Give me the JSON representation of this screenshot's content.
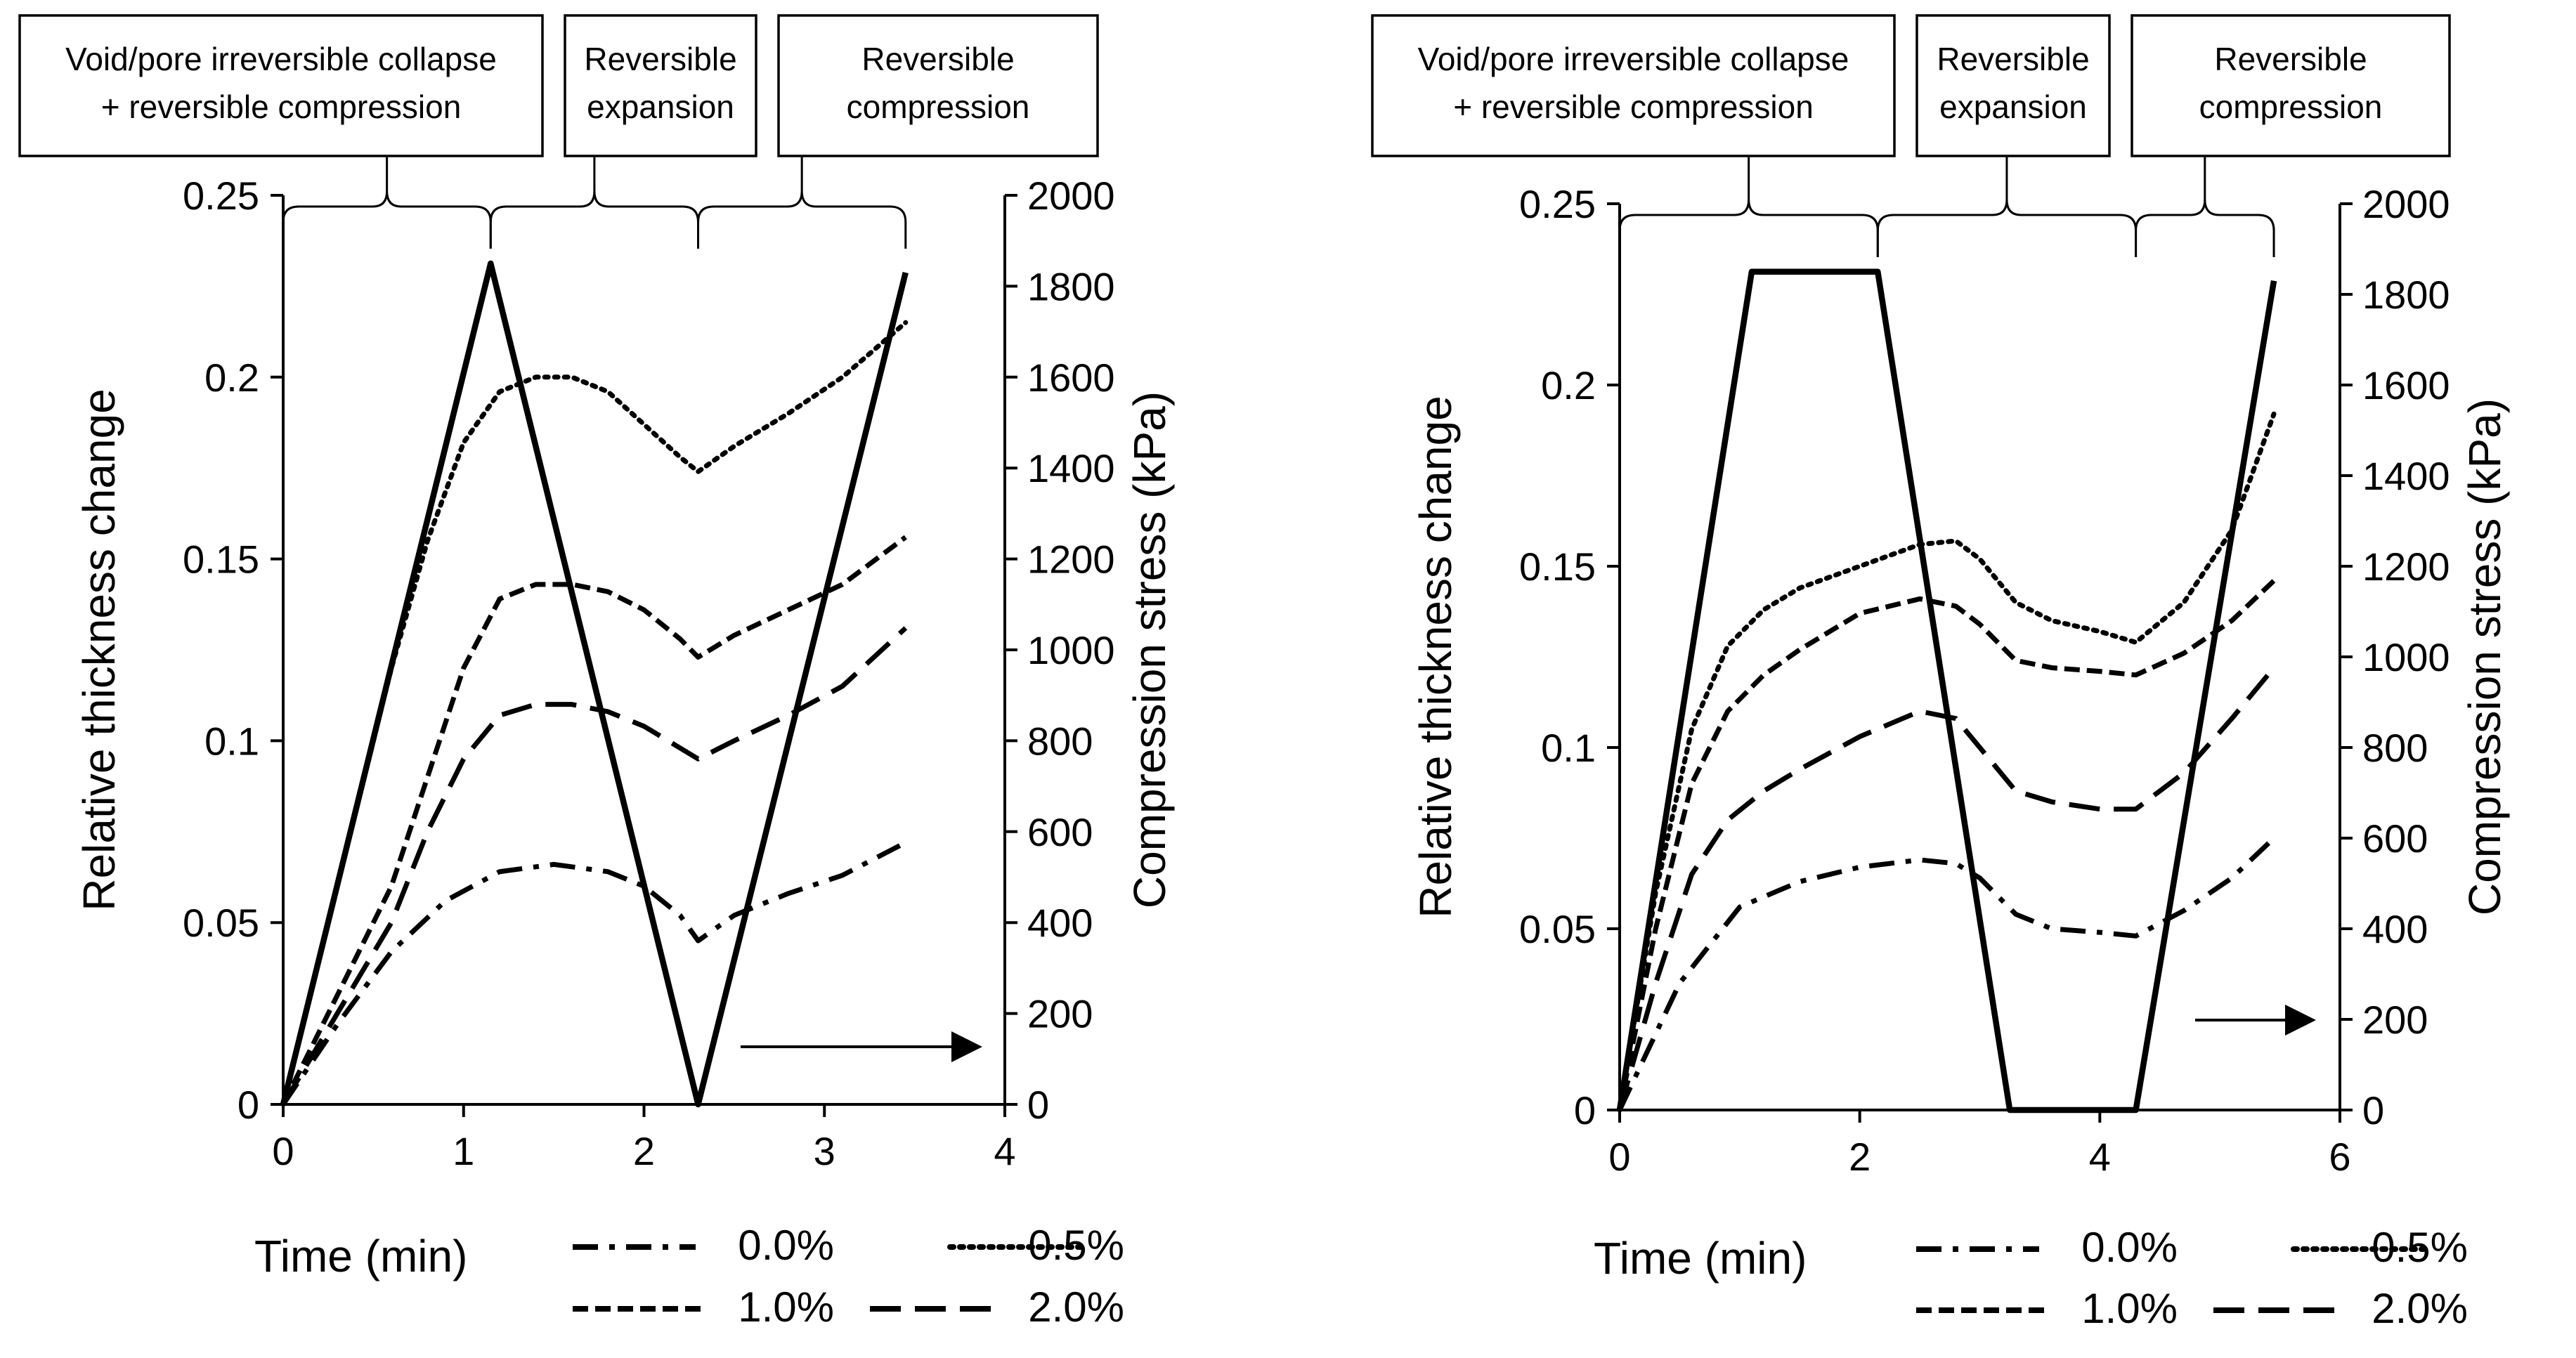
{
  "chart_data": [
    {
      "type": "line",
      "xlabel": "Time (min)",
      "ylabel": "Relative thickness change",
      "y2label": "Compression stress (kPa)",
      "xlim": [
        0,
        4
      ],
      "ylim": [
        0,
        0.25
      ],
      "y2lim": [
        0,
        2000
      ],
      "xticks": [
        "0",
        "1",
        "2",
        "3",
        "4"
      ],
      "yticks": [
        "0",
        "0.05",
        "0.1",
        "0.15",
        "0.2",
        "0.25"
      ],
      "y2ticks": [
        "0",
        "200",
        "400",
        "600",
        "800",
        "1000",
        "1200",
        "1400",
        "1600",
        "1800",
        "2000"
      ],
      "phases": [
        {
          "label_lines": [
            "Void/pore irreversible collapse",
            "+ reversible compression"
          ],
          "start": 0,
          "end": 1.15
        },
        {
          "label_lines": [
            "Reversible",
            "expansion"
          ],
          "start": 1.15,
          "end": 2.3
        },
        {
          "label_lines": [
            "Reversible",
            "compression"
          ],
          "start": 2.3,
          "end": 3.45
        }
      ],
      "series": [
        {
          "name": "0.0%",
          "style": "dashdot",
          "axis": "left",
          "x": [
            0,
            0.3,
            0.6,
            0.9,
            1.2,
            1.5,
            1.8,
            2.0,
            2.2,
            2.3,
            2.5,
            2.8,
            3.1,
            3.45
          ],
          "y": [
            0,
            0.022,
            0.042,
            0.056,
            0.064,
            0.066,
            0.064,
            0.06,
            0.052,
            0.045,
            0.052,
            0.058,
            0.063,
            0.072
          ]
        },
        {
          "name": "0.5%",
          "style": "dotted",
          "axis": "left",
          "x": [
            0,
            0.2,
            0.4,
            0.6,
            0.8,
            1.0,
            1.2,
            1.4,
            1.6,
            1.8,
            2.0,
            2.2,
            2.3,
            2.5,
            2.8,
            3.1,
            3.45
          ],
          "y": [
            0,
            0.04,
            0.08,
            0.12,
            0.155,
            0.182,
            0.196,
            0.2,
            0.2,
            0.196,
            0.187,
            0.178,
            0.174,
            0.181,
            0.19,
            0.2,
            0.215
          ]
        },
        {
          "name": "1.0%",
          "style": "short-dash",
          "axis": "left",
          "x": [
            0,
            0.3,
            0.6,
            0.8,
            1.0,
            1.2,
            1.4,
            1.6,
            1.8,
            2.0,
            2.2,
            2.3,
            2.5,
            2.8,
            3.1,
            3.45
          ],
          "y": [
            0,
            0.03,
            0.06,
            0.09,
            0.12,
            0.139,
            0.143,
            0.143,
            0.141,
            0.136,
            0.128,
            0.123,
            0.129,
            0.136,
            0.143,
            0.156
          ]
        },
        {
          "name": "2.0%",
          "style": "long-dash",
          "axis": "left",
          "x": [
            0,
            0.3,
            0.6,
            0.8,
            1.0,
            1.2,
            1.4,
            1.6,
            1.8,
            2.0,
            2.2,
            2.3,
            2.5,
            2.8,
            3.1,
            3.45
          ],
          "y": [
            0,
            0.025,
            0.05,
            0.075,
            0.095,
            0.107,
            0.11,
            0.11,
            0.108,
            0.104,
            0.098,
            0.095,
            0.1,
            0.107,
            0.115,
            0.131
          ]
        },
        {
          "name": "Compression stress",
          "style": "solid",
          "axis": "right",
          "x": [
            0,
            1.15,
            2.3,
            3.45
          ],
          "y": [
            0,
            1850,
            0,
            1830
          ]
        }
      ]
    },
    {
      "type": "line",
      "xlabel": "Time (min)",
      "ylabel": "Relative thickness change",
      "y2label": "Compression stress (kPa)",
      "xlim": [
        0,
        6
      ],
      "ylim": [
        0,
        0.25
      ],
      "y2lim": [
        0,
        2000
      ],
      "xticks": [
        "0",
        "2",
        "4",
        "6"
      ],
      "yticks": [
        "0",
        "0.05",
        "0.1",
        "0.15",
        "0.2",
        "0.25"
      ],
      "y2ticks": [
        "0",
        "200",
        "400",
        "600",
        "800",
        "1000",
        "1200",
        "1400",
        "1600",
        "1800",
        "2000"
      ],
      "phases": [
        {
          "label_lines": [
            "Void/pore irreversible collapse",
            "+ reversible compression"
          ],
          "start": 0,
          "end": 2.15
        },
        {
          "label_lines": [
            "Reversible",
            "expansion"
          ],
          "start": 2.15,
          "end": 4.3
        },
        {
          "label_lines": [
            "Reversible",
            "compression"
          ],
          "start": 4.3,
          "end": 5.45
        }
      ],
      "series": [
        {
          "name": "0.0%",
          "style": "dashdot",
          "axis": "left",
          "x": [
            0,
            0.5,
            1.0,
            1.5,
            2.0,
            2.5,
            2.8,
            3.0,
            3.3,
            3.6,
            4.0,
            4.3,
            4.7,
            5.1,
            5.45
          ],
          "y": [
            0,
            0.035,
            0.056,
            0.063,
            0.067,
            0.069,
            0.068,
            0.064,
            0.054,
            0.05,
            0.049,
            0.048,
            0.055,
            0.064,
            0.075
          ]
        },
        {
          "name": "0.5%",
          "style": "dotted",
          "axis": "left",
          "x": [
            0,
            0.3,
            0.6,
            0.9,
            1.2,
            1.5,
            2.0,
            2.5,
            2.8,
            3.0,
            3.3,
            3.6,
            4.0,
            4.3,
            4.7,
            5.1,
            5.45
          ],
          "y": [
            0,
            0.06,
            0.105,
            0.128,
            0.138,
            0.144,
            0.15,
            0.156,
            0.157,
            0.152,
            0.14,
            0.135,
            0.132,
            0.129,
            0.14,
            0.16,
            0.192
          ]
        },
        {
          "name": "1.0%",
          "style": "short-dash",
          "axis": "left",
          "x": [
            0,
            0.3,
            0.6,
            0.9,
            1.2,
            1.5,
            2.0,
            2.5,
            2.8,
            3.0,
            3.3,
            3.6,
            4.0,
            4.3,
            4.7,
            5.1,
            5.45
          ],
          "y": [
            0,
            0.05,
            0.09,
            0.11,
            0.12,
            0.127,
            0.137,
            0.141,
            0.139,
            0.134,
            0.124,
            0.122,
            0.121,
            0.12,
            0.126,
            0.135,
            0.146
          ]
        },
        {
          "name": "2.0%",
          "style": "long-dash",
          "axis": "left",
          "x": [
            0,
            0.3,
            0.6,
            0.9,
            1.2,
            1.5,
            2.0,
            2.5,
            2.8,
            3.0,
            3.3,
            3.6,
            4.0,
            4.3,
            4.7,
            5.1,
            5.45
          ],
          "y": [
            0,
            0.035,
            0.065,
            0.08,
            0.088,
            0.094,
            0.103,
            0.11,
            0.108,
            0.1,
            0.088,
            0.085,
            0.083,
            0.083,
            0.093,
            0.108,
            0.122
          ]
        },
        {
          "name": "Compression stress",
          "style": "solid",
          "axis": "right",
          "x": [
            0,
            1.1,
            2.15,
            3.25,
            4.3,
            5.45
          ],
          "y": [
            0,
            1850,
            1850,
            0,
            0,
            1830
          ]
        }
      ]
    }
  ],
  "legend": {
    "entries": [
      {
        "label": "0.0%",
        "style": "dashdot"
      },
      {
        "label": "0.5%",
        "style": "dotted"
      },
      {
        "label": "1.0%",
        "style": "short-dash"
      },
      {
        "label": "2.0%",
        "style": "long-dash"
      }
    ]
  }
}
